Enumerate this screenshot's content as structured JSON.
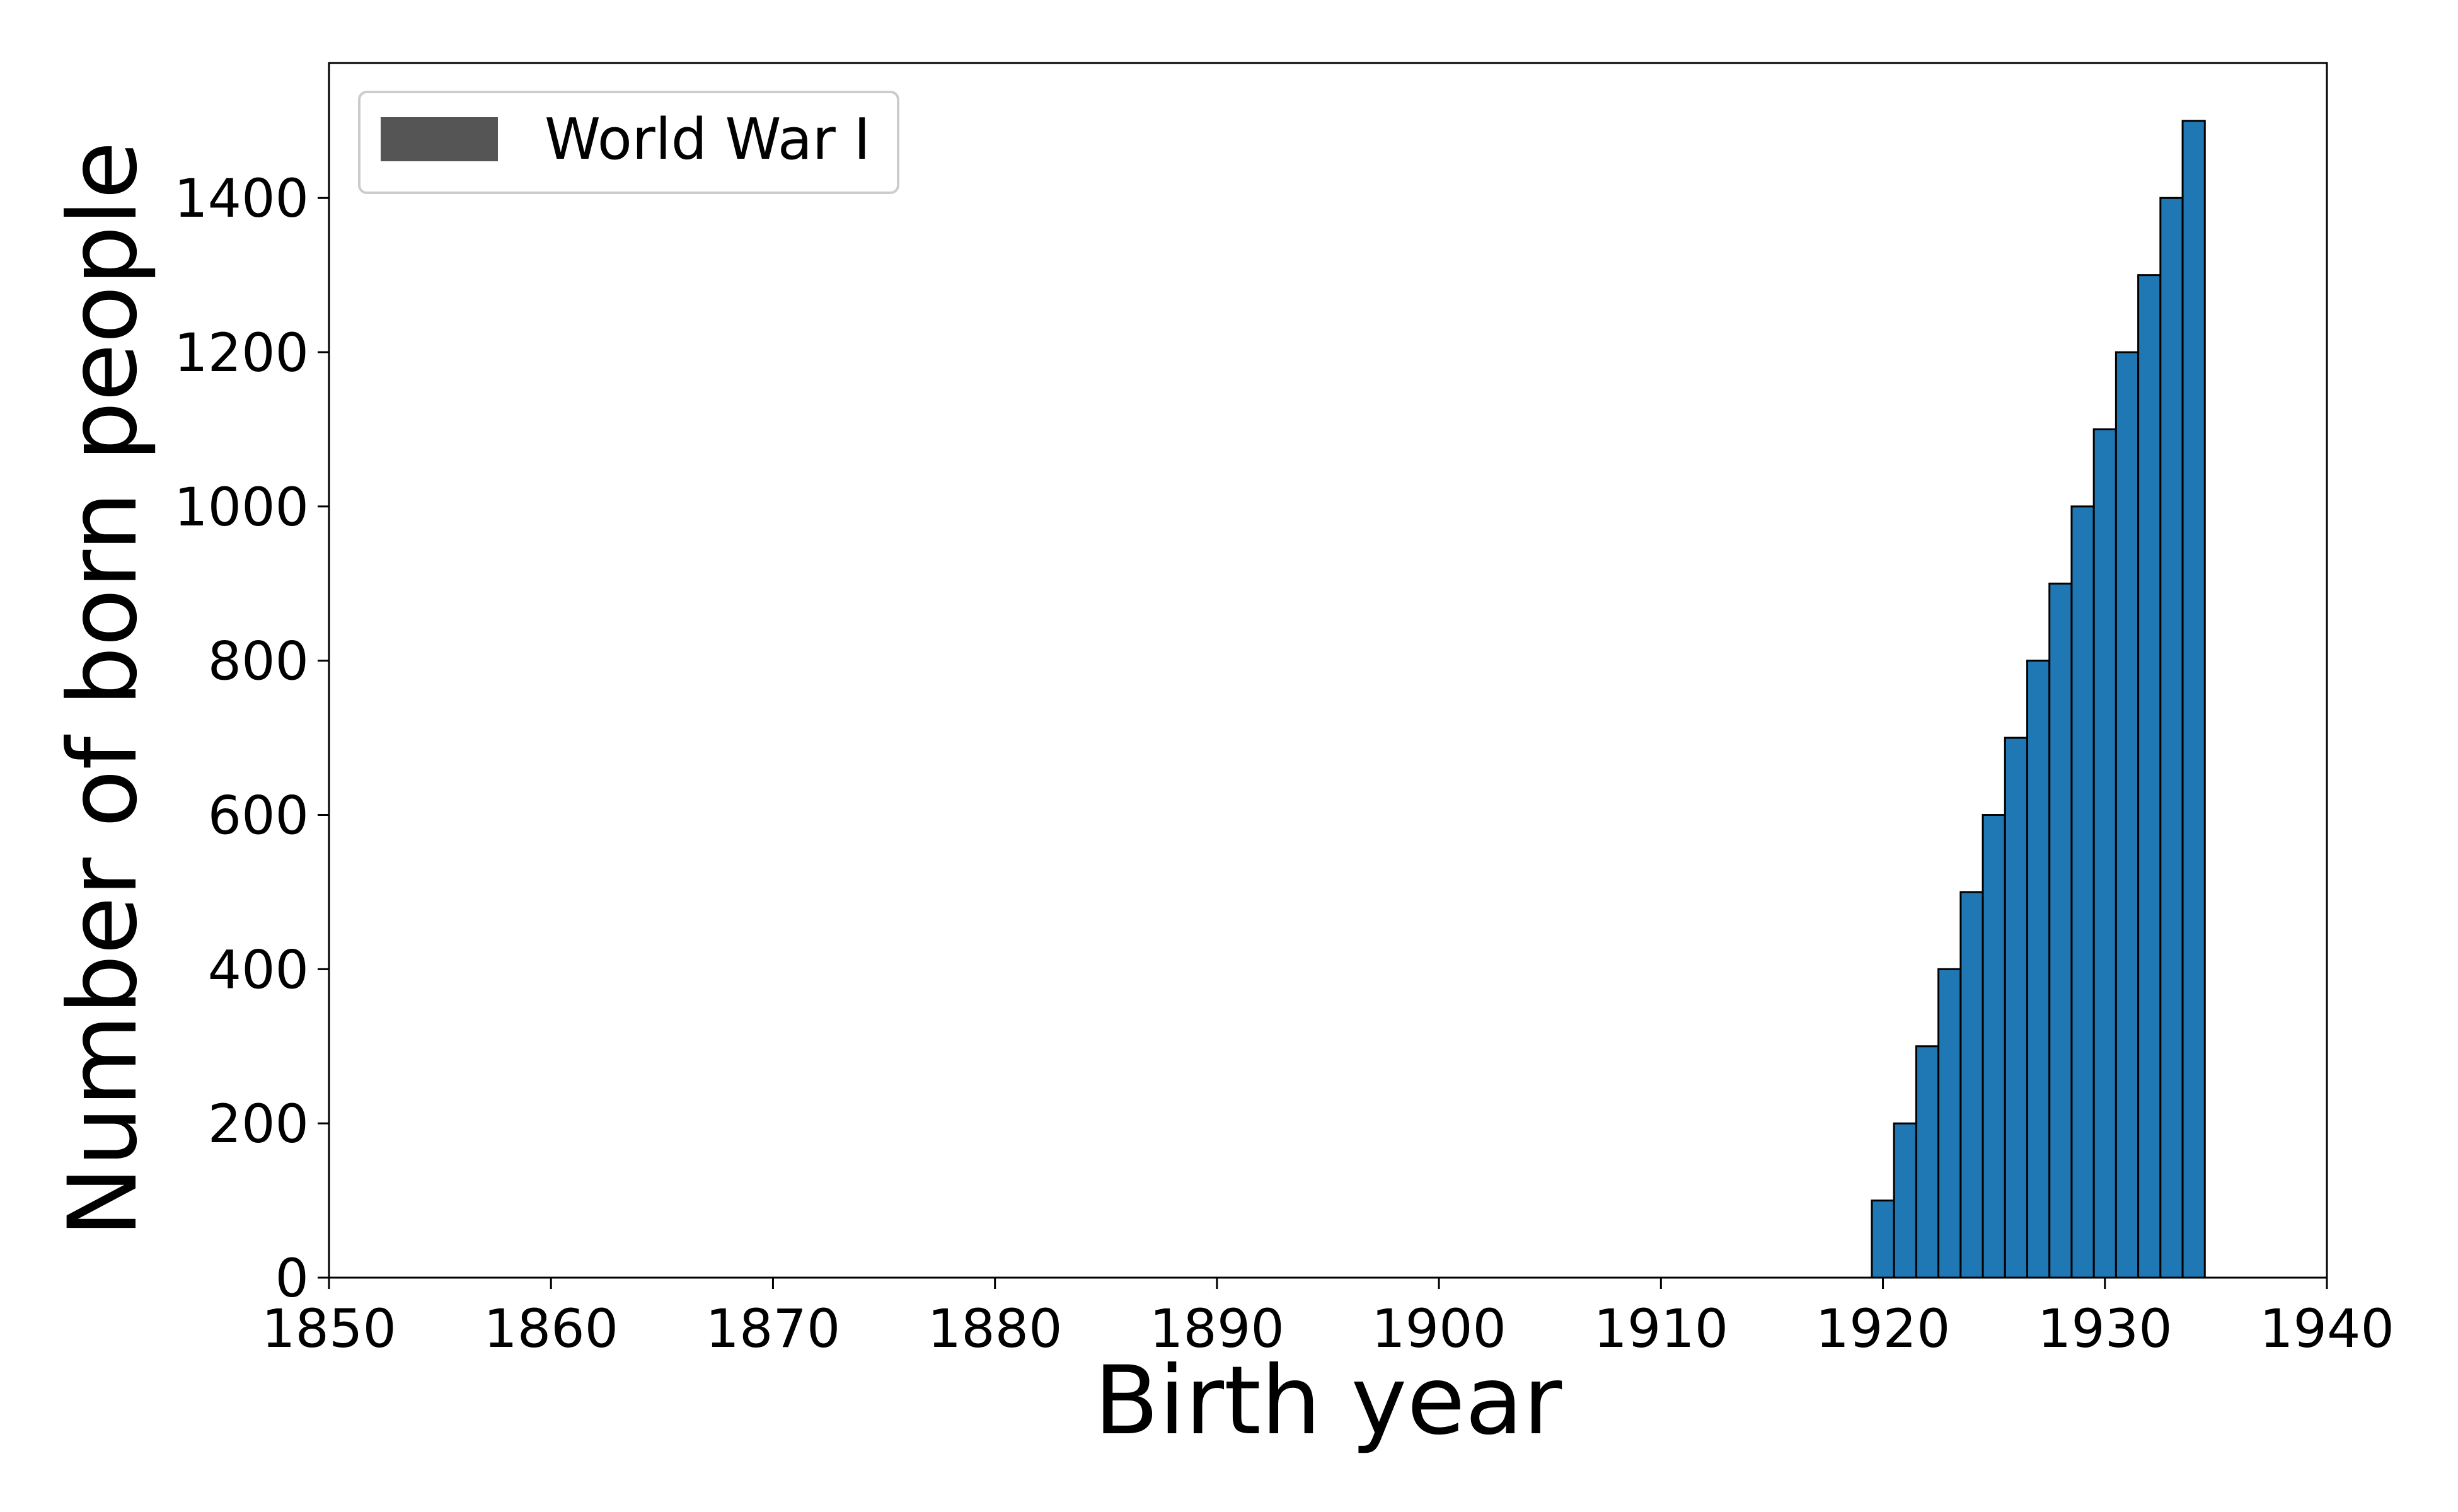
{
  "chart_data": {
    "type": "bar",
    "title": "",
    "xlabel": "Birth year",
    "ylabel": "Number of born people",
    "xlim": [
      1850,
      1940
    ],
    "ylim": [
      0,
      1575
    ],
    "x_ticks": [
      1850,
      1860,
      1870,
      1880,
      1890,
      1900,
      1910,
      1920,
      1930,
      1940
    ],
    "y_ticks": [
      0,
      200,
      400,
      600,
      800,
      1000,
      1200,
      1400
    ],
    "bar_width": 1,
    "grid": false,
    "legend": {
      "position": "top-left",
      "entries": [
        {
          "label": "World War I",
          "color": "#555555"
        }
      ]
    },
    "bar_color": "#1f77b4",
    "bar_edge_color": "#000000",
    "x": [
      1920,
      1921,
      1922,
      1923,
      1924,
      1925,
      1926,
      1927,
      1928,
      1929,
      1930,
      1931,
      1932,
      1933,
      1934
    ],
    "values": [
      100,
      200,
      300,
      400,
      500,
      600,
      700,
      800,
      900,
      1000,
      1100,
      1200,
      1300,
      1400,
      1500
    ]
  }
}
